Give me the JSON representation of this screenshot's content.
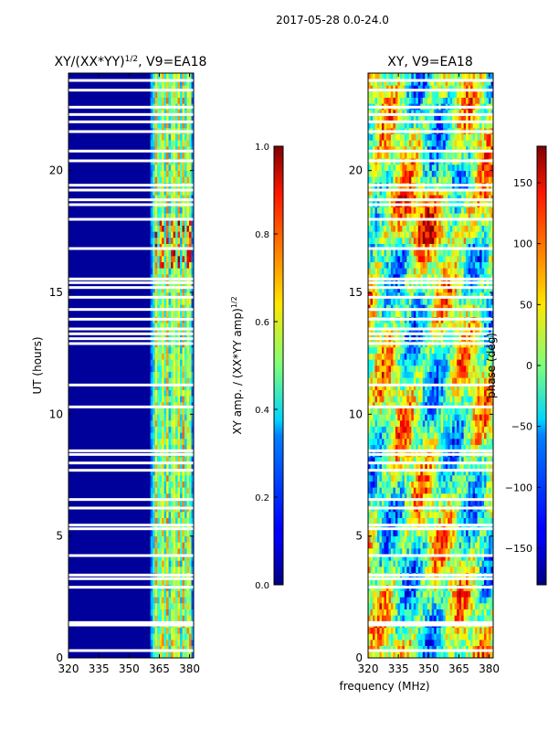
{
  "figure": {
    "suptitle": "2017-05-28 0.0-24.0",
    "xlabel": "frequency (MHz)"
  },
  "chart_data": [
    {
      "type": "heatmap",
      "title_prefix": "XY/(XX*YY)",
      "title_sup": "1/2",
      "title_suffix": ", V9=EA18",
      "ylabel": "UT (hours)",
      "xlim": [
        320,
        382
      ],
      "ylim": [
        0,
        24
      ],
      "xticks": [
        320,
        335,
        350,
        365,
        380
      ],
      "yticks": [
        0,
        5,
        10,
        15,
        20
      ],
      "colorbar": {
        "label_prefix": "XY amp. / (XX*YY amp)",
        "label_sup": "1/2",
        "range": [
          0.0,
          1.0
        ],
        "ticks": [
          "0.0",
          "0.2",
          "0.4",
          "0.6",
          "0.8",
          "1.0"
        ],
        "colormap": "jet"
      },
      "bright_channels_mhz": [
        363.5,
        366.5,
        369,
        372,
        374.5,
        377,
        379.5
      ],
      "gap_hours": [
        0.3,
        1.35,
        1.45,
        2.9,
        3.25,
        3.4,
        4.2,
        5.3,
        5.45,
        6.15,
        6.5,
        7.7,
        8.0,
        8.35,
        8.5,
        10.3,
        11.2,
        12.9,
        13.1,
        13.3,
        13.5,
        13.9,
        14.3,
        14.8,
        15.2,
        15.4,
        15.55,
        16.8,
        18.0,
        18.6,
        18.8,
        19.2,
        19.4,
        20.4,
        20.8,
        21.6,
        22.0,
        22.3,
        22.6,
        23.3,
        23.7
      ]
    },
    {
      "type": "heatmap",
      "title": "XY, V9=EA18",
      "ylabel": "",
      "xlim": [
        320,
        382
      ],
      "ylim": [
        0,
        24
      ],
      "xticks": [
        320,
        335,
        350,
        365,
        380
      ],
      "yticks": [
        0,
        5,
        10,
        15,
        20
      ],
      "colorbar": {
        "label": "phase (deg)",
        "range": [
          -180,
          180
        ],
        "ticks": [
          "150",
          "100",
          "50",
          "0",
          "−50",
          "−100",
          "−150"
        ],
        "colormap": "jet"
      },
      "gap_hours": [
        0.3,
        1.35,
        1.45,
        2.9,
        3.25,
        3.4,
        4.2,
        5.3,
        5.45,
        6.15,
        6.5,
        7.7,
        8.0,
        8.35,
        8.5,
        10.3,
        11.2,
        12.9,
        13.1,
        13.3,
        13.5,
        13.9,
        14.3,
        14.8,
        15.2,
        15.4,
        15.55,
        16.8,
        18.0,
        18.6,
        18.8,
        19.2,
        19.4,
        20.4,
        20.8,
        21.6,
        22.0,
        22.3,
        22.6,
        23.3,
        23.7
      ]
    }
  ]
}
